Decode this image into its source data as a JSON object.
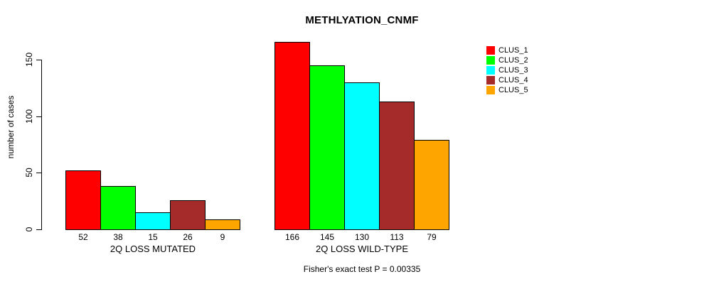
{
  "chart_data": {
    "type": "bar",
    "title": "METHLYATION_CNMF",
    "ylabel": "number of cases",
    "xlabel": "",
    "ylim": [
      0,
      150
    ],
    "yticks": [
      0,
      50,
      100,
      150
    ],
    "grid": false,
    "value_labels_shown": true,
    "legend_position": "right",
    "categories": [
      "2Q LOSS MUTATED",
      "2Q LOSS WILD-TYPE"
    ],
    "series": [
      {
        "name": "CLUS_1",
        "color": "#ff0000",
        "values": [
          52,
          166
        ]
      },
      {
        "name": "CLUS_2",
        "color": "#00ff00",
        "values": [
          38,
          145
        ]
      },
      {
        "name": "CLUS_3",
        "color": "#00ffff",
        "values": [
          15,
          130
        ]
      },
      {
        "name": "CLUS_4",
        "color": "#a52a2a",
        "values": [
          26,
          113
        ]
      },
      {
        "name": "CLUS_5",
        "color": "#ffa500",
        "values": [
          9,
          79
        ]
      }
    ],
    "annotation": "Fisher's exact test P = 0.00335"
  },
  "colors": {
    "background": "#ffffff",
    "axis": "#000000",
    "bar_border": "#000000"
  }
}
